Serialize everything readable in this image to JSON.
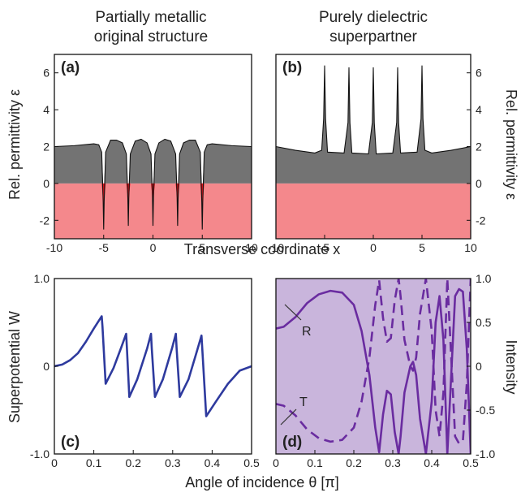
{
  "titles": {
    "a": [
      "Partially metallic",
      "original structure"
    ],
    "b": [
      "Purely dielectric",
      "superpartner"
    ]
  },
  "chart_data": [
    {
      "id": "a",
      "type": "area",
      "panel_label": "(a)",
      "ylabel": "Rel. permittivity ε",
      "xlim": [
        -10,
        10
      ],
      "ylim": [
        -3,
        7
      ],
      "xticks": [
        "-10",
        "-5",
        "0",
        "5",
        "10"
      ],
      "yticks": [
        "-2",
        "0",
        "2",
        "4",
        "6"
      ],
      "x": [
        -10,
        -8,
        -6,
        -5.5,
        -5.2,
        -5.05,
        -5,
        -4.95,
        -4.8,
        -4.3,
        -3.7,
        -3.1,
        -2.7,
        -2.55,
        -2.5,
        -2.45,
        -2.3,
        -1.8,
        -1.2,
        -0.6,
        -0.2,
        -0.05,
        0,
        0.05,
        0.2,
        0.6,
        1.2,
        1.8,
        2.3,
        2.45,
        2.5,
        2.55,
        2.7,
        3.1,
        3.7,
        4.3,
        4.8,
        4.95,
        5,
        5.05,
        5.2,
        5.5,
        6,
        8,
        10
      ],
      "y": [
        2.0,
        2.05,
        2.15,
        2.1,
        1.7,
        -1.0,
        -2.5,
        -1.0,
        1.7,
        2.35,
        2.35,
        2.2,
        1.6,
        -0.8,
        -2.3,
        -0.8,
        1.6,
        2.3,
        2.4,
        2.2,
        1.6,
        -0.8,
        -2.3,
        -0.8,
        1.6,
        2.2,
        2.4,
        2.3,
        1.6,
        -0.8,
        -2.3,
        -0.8,
        1.6,
        2.2,
        2.35,
        2.35,
        1.7,
        -1.0,
        -2.5,
        -1.0,
        1.7,
        2.1,
        2.15,
        2.05,
        2.0
      ],
      "negative_region_color": "#f4888c",
      "fill_color": "#737373",
      "highlight_color": "#e8141c"
    },
    {
      "id": "b",
      "type": "area",
      "panel_label": "(b)",
      "ylabel": "Rel. permittivity ε",
      "xlim": [
        -10,
        10
      ],
      "ylim": [
        -3,
        7
      ],
      "xticks": [
        "-10",
        "-5",
        "0",
        "5",
        "10"
      ],
      "yticks": [
        "-2",
        "0",
        "2",
        "4",
        "6"
      ],
      "x": [
        -10,
        -8,
        -6,
        -5.3,
        -5.1,
        -5,
        -4.9,
        -4.7,
        -3,
        -2.6,
        -2.5,
        -2.4,
        -2.2,
        -0.5,
        -0.1,
        0,
        0.1,
        0.3,
        2,
        2.4,
        2.5,
        2.6,
        2.8,
        4.5,
        4.9,
        5,
        5.1,
        5.3,
        6,
        8,
        10
      ],
      "y": [
        2.0,
        1.8,
        1.65,
        1.8,
        3.5,
        6.4,
        3.5,
        1.7,
        1.65,
        3.3,
        6.3,
        3.3,
        1.65,
        1.6,
        3.3,
        6.3,
        3.3,
        1.6,
        1.65,
        3.3,
        6.3,
        3.3,
        1.65,
        1.7,
        3.5,
        6.4,
        3.5,
        1.8,
        1.65,
        1.8,
        2.0
      ],
      "negative_region_color": "#f4888c",
      "fill_color": "#737373"
    },
    {
      "id": "c",
      "type": "line",
      "panel_label": "(c)",
      "ylabel": "Superpotential W",
      "xlim": [
        0,
        0.5
      ],
      "ylim": [
        -1,
        1
      ],
      "xticks": [
        "0",
        "0.1",
        "0.2",
        "0.3",
        "0.4",
        "0.5"
      ],
      "yticks": [
        "-1.0",
        "0",
        "1.0"
      ],
      "x": [
        0,
        0.02,
        0.04,
        0.06,
        0.08,
        0.1,
        0.12,
        0.122,
        0.13,
        0.15,
        0.17,
        0.182,
        0.184,
        0.19,
        0.21,
        0.235,
        0.245,
        0.247,
        0.255,
        0.275,
        0.298,
        0.308,
        0.31,
        0.318,
        0.34,
        0.36,
        0.373,
        0.375,
        0.385,
        0.41,
        0.44,
        0.47,
        0.5
      ],
      "y": [
        0.0,
        0.02,
        0.07,
        0.15,
        0.28,
        0.43,
        0.57,
        0.45,
        -0.2,
        -0.02,
        0.22,
        0.37,
        0.2,
        -0.35,
        -0.15,
        0.2,
        0.37,
        0.2,
        -0.35,
        -0.15,
        0.2,
        0.37,
        0.2,
        -0.35,
        -0.15,
        0.15,
        0.35,
        0.2,
        -0.57,
        -0.4,
        -0.2,
        -0.05,
        0.0
      ],
      "line_color": "#2e3a9e"
    },
    {
      "id": "d",
      "type": "line",
      "panel_label": "(d)",
      "ylabel": "Intensity",
      "xlim": [
        0,
        0.5
      ],
      "ylim": [
        -1,
        1
      ],
      "xticks": [
        "0",
        "0.1",
        "0.2",
        "0.3",
        "0.4",
        "0.5"
      ],
      "yticks": [
        "-1.0",
        "-0.5",
        "0",
        "0.5",
        "1.0"
      ],
      "background_color": "#c9b5dc",
      "line_color": "#6a2ca0",
      "series": [
        {
          "name": "R",
          "style": "solid",
          "x": [
            0,
            0.02,
            0.05,
            0.08,
            0.11,
            0.14,
            0.17,
            0.2,
            0.22,
            0.24,
            0.255,
            0.265,
            0.275,
            0.285,
            0.295,
            0.305,
            0.315,
            0.32,
            0.33,
            0.345,
            0.352,
            0.36,
            0.37,
            0.385,
            0.4,
            0.41,
            0.42,
            0.43,
            0.44,
            0.45,
            0.46,
            0.47,
            0.48,
            0.49,
            0.5
          ],
          "y": [
            0.43,
            0.45,
            0.56,
            0.72,
            0.82,
            0.86,
            0.84,
            0.7,
            0.4,
            -0.1,
            -0.7,
            -0.98,
            -0.55,
            -0.28,
            -0.32,
            -0.75,
            -1.0,
            -0.8,
            -0.3,
            0.0,
            0.05,
            -0.1,
            -0.6,
            -1.0,
            -0.4,
            0.5,
            0.8,
            0.3,
            -1.0,
            -0.1,
            0.8,
            0.88,
            0.85,
            0.2,
            -1.0
          ]
        },
        {
          "name": "T",
          "style": "dashed",
          "x": [
            0,
            0.02,
            0.05,
            0.08,
            0.11,
            0.14,
            0.17,
            0.2,
            0.22,
            0.24,
            0.255,
            0.265,
            0.275,
            0.285,
            0.295,
            0.305,
            0.315,
            0.32,
            0.33,
            0.345,
            0.352,
            0.36,
            0.37,
            0.385,
            0.4,
            0.41,
            0.42,
            0.43,
            0.44,
            0.45,
            0.46,
            0.47,
            0.48,
            0.49,
            0.5
          ],
          "y": [
            -0.43,
            -0.45,
            -0.56,
            -0.72,
            -0.82,
            -0.86,
            -0.84,
            -0.7,
            -0.4,
            0.1,
            0.7,
            0.98,
            0.55,
            0.28,
            0.32,
            0.75,
            1.0,
            0.8,
            0.3,
            0.0,
            -0.05,
            0.1,
            0.6,
            1.0,
            0.4,
            -0.5,
            -0.8,
            -0.3,
            1.0,
            0.1,
            -0.8,
            -0.88,
            -0.85,
            -0.2,
            1.0
          ]
        }
      ]
    }
  ],
  "axes": {
    "top_xlabel": "Transverse coordinate x",
    "bottom_xlabel": "Angle of incidence θ [π]"
  }
}
